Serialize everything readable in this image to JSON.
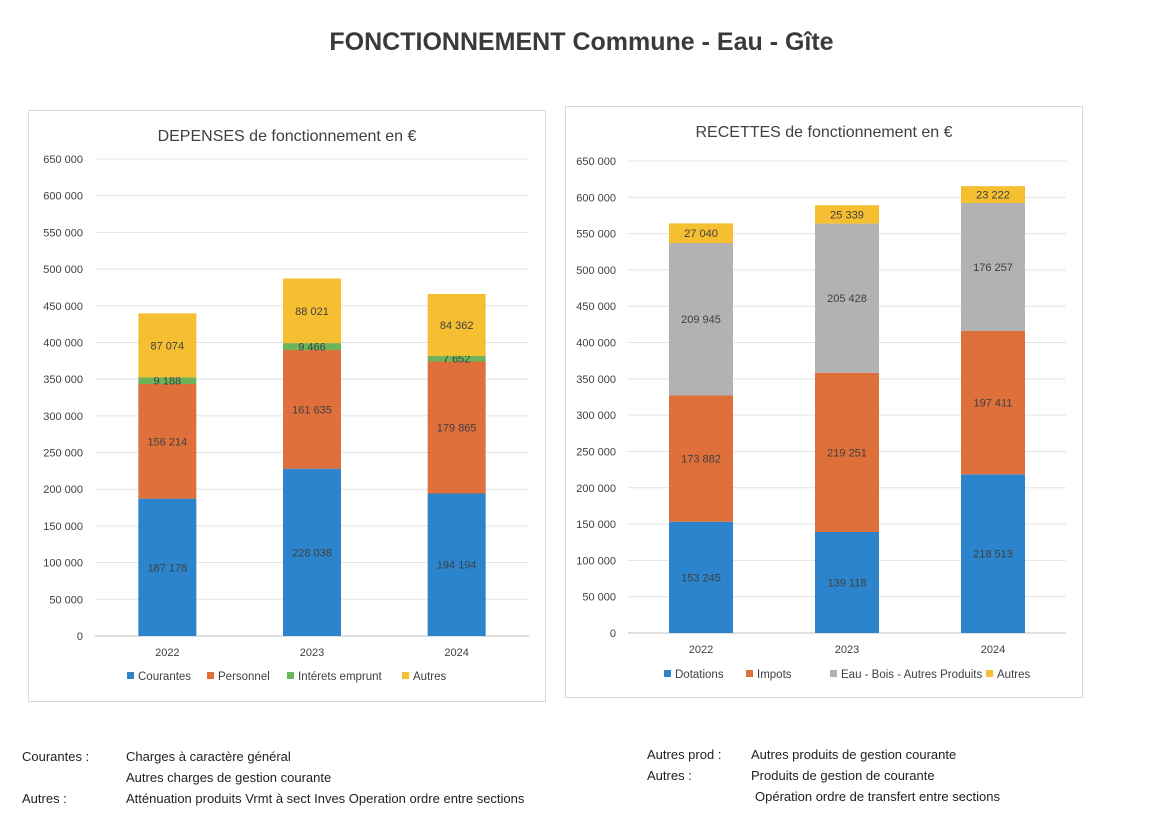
{
  "page": {
    "title": "FONCTIONNEMENT Commune - Eau - Gîte"
  },
  "chart_data": [
    {
      "type": "bar",
      "stacked": true,
      "title": "DEPENSES de fonctionnement en €",
      "categories": [
        "2022",
        "2023",
        "2024"
      ],
      "ylim": [
        0,
        650000
      ],
      "yticks": [
        "0",
        "50 000",
        "100 000",
        "150 000",
        "200 000",
        "250 000",
        "300 000",
        "350 000",
        "400 000",
        "450 000",
        "500 000",
        "550 000",
        "600 000",
        "650 000"
      ],
      "grid": true,
      "legend": "bottom",
      "series": [
        {
          "name": "Courantes",
          "color": "#2b84cc",
          "values": [
            187178,
            228038,
            194194
          ],
          "labels": [
            "187 178",
            "228 038",
            "194 194"
          ]
        },
        {
          "name": "Personnel",
          "color": "#e0703b",
          "values": [
            156214,
            161635,
            179865
          ],
          "labels": [
            "156 214",
            "161 635",
            "179 865"
          ]
        },
        {
          "name": "Intérets emprunt",
          "color": "#6db35a",
          "values": [
            9188,
            9466,
            7652
          ],
          "labels": [
            "9 188",
            "9 466",
            "7 652"
          ]
        },
        {
          "name": "Autres",
          "color": "#f6bf32",
          "values": [
            87074,
            88021,
            84362
          ],
          "labels": [
            "87 074",
            "88 021",
            "84 362"
          ]
        }
      ]
    },
    {
      "type": "bar",
      "stacked": true,
      "title": "RECETTES de fonctionnement en €",
      "categories": [
        "2022",
        "2023",
        "2024"
      ],
      "ylim": [
        0,
        650000
      ],
      "yticks": [
        "0",
        "50 000",
        "100 000",
        "150 000",
        "200 000",
        "250 000",
        "300 000",
        "350 000",
        "400 000",
        "450 000",
        "500 000",
        "550 000",
        "600 000",
        "650 000"
      ],
      "grid": true,
      "legend": "bottom",
      "series": [
        {
          "name": "Dotations",
          "color": "#2b84cc",
          "values": [
            153245,
            139118,
            218513
          ],
          "labels": [
            "153 245",
            "139 118",
            "218 513"
          ]
        },
        {
          "name": "Impots",
          "color": "#e0703b",
          "values": [
            173882,
            219251,
            197411
          ],
          "labels": [
            "173 882",
            "219 251",
            "197 411"
          ]
        },
        {
          "name": "Eau - Bois - Autres  Produits",
          "color": "#b2b2b2",
          "values": [
            209945,
            205428,
            176257
          ],
          "labels": [
            "209 945",
            "205 428",
            "176 257"
          ]
        },
        {
          "name": "Autres",
          "color": "#f6bf32",
          "values": [
            27040,
            25339,
            23222
          ],
          "labels": [
            "27 040",
            "25 339",
            "23 222"
          ]
        }
      ]
    }
  ],
  "footnotes": {
    "left": {
      "courantes_key": "Courantes :",
      "courantes_line1": "Charges à caractère général",
      "courantes_line2": "Autres charges de gestion courante",
      "autres_key": "Autres :",
      "autres_line1": "Atténuation produits Vrmt à sect Inves Operation ordre entre sections"
    },
    "right": {
      "autresprod_key": "Autres prod :",
      "autresprod_line1": "Autres produits de gestion courante",
      "autres_key": "Autres :",
      "autres_line1": "Produits de gestion de courante",
      "autres_line2": "Opération ordre de transfert entre sections"
    }
  }
}
